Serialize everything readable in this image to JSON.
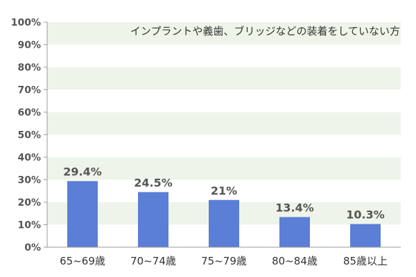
{
  "chart_data": {
    "type": "bar",
    "title": "インプラントや義歯、ブリッジなどの装着をしていない方",
    "xlabel": "",
    "ylabel": "",
    "categories": [
      "65~69歳",
      "70~74歳",
      "75~79歳",
      "80~84歳",
      "85歳以上"
    ],
    "values": [
      29.4,
      24.5,
      21,
      13.4,
      10.3
    ],
    "value_labels": [
      "29.4%",
      "24.5%",
      "21%",
      "13.4%",
      "10.3%"
    ],
    "ylim": [
      0,
      100
    ],
    "yticks": [
      0,
      10,
      20,
      30,
      40,
      50,
      60,
      70,
      80,
      90,
      100
    ],
    "ytick_labels": [
      "0%",
      "10%",
      "20%",
      "30%",
      "40%",
      "50%",
      "60%",
      "70%",
      "80%",
      "90%",
      "100%"
    ],
    "grid": "alternating horizontal bands",
    "legend": "none"
  },
  "colors": {
    "bar": "#5b7fd6",
    "band": "#eff4ea",
    "axis": "#999999"
  }
}
